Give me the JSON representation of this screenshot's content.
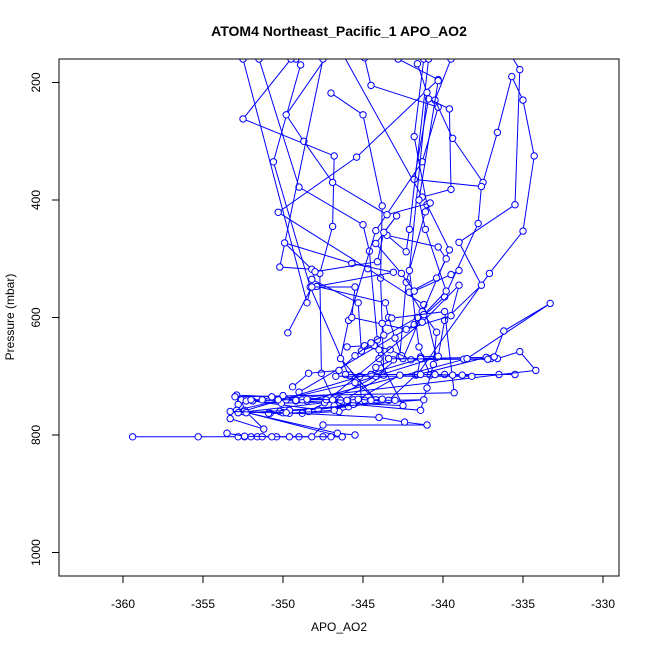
{
  "chart_data": {
    "type": "line",
    "title": "ATOM4 Northeast_Pacific_1 APO_AO2",
    "xlabel": "APO_AO2",
    "ylabel": "Pressure (mbar)",
    "xlim": [
      -364,
      -329
    ],
    "ylim": [
      1040,
      160
    ],
    "y_reversed": true,
    "x_ticks": [
      -360,
      -355,
      -350,
      -345,
      -340,
      -335,
      -330
    ],
    "x_tick_labels": [
      "-360",
      "-355",
      "-350",
      "-345",
      "-340",
      "-335",
      "-330"
    ],
    "y_ticks": [
      200,
      400,
      600,
      800,
      1000
    ],
    "y_tick_labels": [
      "200",
      "400",
      "600",
      "800",
      "1000"
    ],
    "markers": "open-circle",
    "grid": false,
    "colors": {
      "series": "#0000ff",
      "axis": "#000000"
    },
    "series": [
      {
        "points": [
          [
            -349.2,
            160
          ],
          [
            -348.9,
            170
          ],
          [
            -350.6,
            335
          ],
          [
            -348.3,
            548
          ],
          [
            -345.9,
            698
          ],
          [
            -344.2,
            740
          ],
          [
            -346.5,
            760
          ],
          [
            -348.8,
            763
          ],
          [
            -350.8,
            763
          ],
          [
            -352.5,
            760
          ],
          [
            -346.3,
            803
          ],
          [
            -347.5,
            803
          ]
        ]
      },
      {
        "points": [
          [
            -349.5,
            160
          ],
          [
            -352.5,
            262
          ],
          [
            -346.8,
            325
          ],
          [
            -346.9,
            445
          ],
          [
            -347.7,
            525
          ],
          [
            -347.6,
            695
          ],
          [
            -346.8,
            742
          ],
          [
            -345.9,
            752
          ],
          [
            -350.2,
            760
          ],
          [
            -350.0,
            762
          ],
          [
            -349.7,
            762
          ]
        ]
      },
      {
        "points": [
          [
            -351.5,
            160
          ],
          [
            -349.0,
            378
          ],
          [
            -345.0,
            442
          ],
          [
            -344.6,
            487
          ],
          [
            -344.0,
            670
          ],
          [
            -342.5,
            750
          ],
          [
            -349.2,
            742
          ],
          [
            -352.6,
            740
          ],
          [
            -352.4,
            758
          ],
          [
            -351.2,
            790
          ],
          [
            -353.3,
            772
          ]
        ]
      },
      {
        "points": [
          [
            -347.0,
            218
          ],
          [
            -345.0,
            255
          ],
          [
            -343.8,
            410
          ],
          [
            -343.9,
            533
          ],
          [
            -343.7,
            698
          ],
          [
            -346.3,
            743
          ],
          [
            -350.1,
            746
          ],
          [
            -351.9,
            742
          ],
          [
            -347.8,
            757
          ],
          [
            -344.1,
            741
          ],
          [
            -346.5,
            739
          ]
        ]
      },
      {
        "points": [
          [
            -344.9,
            158
          ],
          [
            -344.5,
            205
          ],
          [
            -340.3,
            242
          ],
          [
            -341.3,
            335
          ],
          [
            -344.2,
            452
          ],
          [
            -345.9,
            605
          ],
          [
            -346.4,
            670
          ],
          [
            -344.2,
            740
          ],
          [
            -344.6,
            742
          ],
          [
            -352.9,
            732
          ],
          [
            -352.8,
            748
          ]
        ]
      },
      {
        "points": [
          [
            -342.8,
            160
          ],
          [
            -340.3,
            195
          ],
          [
            -345.4,
            327
          ],
          [
            -350.3,
            421
          ],
          [
            -344.7,
            517
          ],
          [
            -341.2,
            578
          ],
          [
            -340.4,
            668
          ],
          [
            -345.5,
            711
          ],
          [
            -352.9,
            758
          ],
          [
            -346.6,
            797
          ],
          [
            -345.5,
            800
          ]
        ]
      },
      {
        "points": [
          [
            -341.2,
            160
          ],
          [
            -341.8,
            292
          ],
          [
            -341.0,
            408
          ],
          [
            -339.6,
            485
          ],
          [
            -342.5,
            670
          ],
          [
            -337.3,
            668
          ],
          [
            -341.7,
            698
          ],
          [
            -343.4,
            741
          ],
          [
            -345.1,
            742
          ],
          [
            -345.2,
            700
          ],
          [
            -345.8,
            698
          ]
        ]
      },
      {
        "points": [
          [
            -347.2,
            153
          ],
          [
            -349.8,
            255
          ],
          [
            -348.7,
            300
          ],
          [
            -346.9,
            370
          ],
          [
            -343.5,
            425
          ],
          [
            -340.8,
            405
          ],
          [
            -341.1,
            420
          ],
          [
            -342.3,
            540
          ],
          [
            -342.7,
            666
          ],
          [
            -344.2,
            700
          ],
          [
            -348.4,
            760
          ]
        ]
      },
      {
        "points": [
          [
            -339.5,
            160
          ],
          [
            -340.5,
            230
          ],
          [
            -339.4,
            295
          ],
          [
            -337.5,
            370
          ],
          [
            -336.6,
            285
          ],
          [
            -335.7,
            190
          ],
          [
            -335.0,
            230
          ],
          [
            -334.3,
            325
          ],
          [
            -335.0,
            453
          ],
          [
            -337.1,
            525
          ],
          [
            -341.6,
            697
          ]
        ]
      },
      {
        "points": [
          [
            -336.3,
            130
          ],
          [
            -335.2,
            178
          ],
          [
            -335.5,
            408
          ],
          [
            -339.0,
            472
          ],
          [
            -337.6,
            545
          ],
          [
            -339.9,
            605
          ],
          [
            -340.3,
            666
          ],
          [
            -341.4,
            667
          ],
          [
            -341.6,
            697
          ],
          [
            -344.5,
            697
          ],
          [
            -346.1,
            697
          ]
        ]
      },
      {
        "points": [
          [
            -346.5,
            140
          ],
          [
            -341.3,
            395
          ],
          [
            -339.5,
            382
          ],
          [
            -339.6,
            245
          ],
          [
            -340.9,
            228
          ],
          [
            -341.8,
            365
          ],
          [
            -337.6,
            377
          ],
          [
            -337.8,
            440
          ],
          [
            -339.9,
            565
          ],
          [
            -341.8,
            612
          ],
          [
            -349.0,
            727
          ]
        ]
      },
      {
        "points": [
          [
            -340.9,
            160
          ],
          [
            -342.1,
            450
          ],
          [
            -342.3,
            488
          ],
          [
            -343.5,
            460
          ],
          [
            -340.3,
            480
          ],
          [
            -339.8,
            500
          ],
          [
            -340.4,
            533
          ],
          [
            -342.1,
            557
          ],
          [
            -341.3,
            590
          ],
          [
            -341.6,
            600
          ],
          [
            -344.1,
            638
          ]
        ]
      },
      {
        "points": [
          [
            -341.6,
            168
          ],
          [
            -341.0,
            217
          ],
          [
            -342.1,
            520
          ],
          [
            -341.5,
            650
          ],
          [
            -340.8,
            698
          ],
          [
            -336.5,
            697
          ],
          [
            -335.5,
            697
          ],
          [
            -339.9,
            697
          ],
          [
            -344.5,
            697
          ],
          [
            -344.2,
            685
          ],
          [
            -343.1,
            672
          ]
        ]
      },
      {
        "points": [
          [
            -340.3,
            197
          ],
          [
            -341.5,
            400
          ],
          [
            -341.1,
            450
          ],
          [
            -339.8,
            555
          ],
          [
            -341.2,
            595
          ],
          [
            -340.4,
            625
          ],
          [
            -340.6,
            680
          ],
          [
            -341.0,
            720
          ],
          [
            -341.4,
            758
          ],
          [
            -345.6,
            748
          ],
          [
            -346.8,
            750
          ]
        ]
      },
      {
        "points": [
          [
            -347.5,
            160
          ],
          [
            -350.2,
            514
          ],
          [
            -348.2,
            518
          ],
          [
            -349.9,
            473
          ],
          [
            -345.7,
            508
          ],
          [
            -343.1,
            523
          ],
          [
            -347.9,
            547
          ],
          [
            -343.6,
            575
          ],
          [
            -343.4,
            600
          ],
          [
            -343.0,
            635
          ],
          [
            -342.6,
            665
          ]
        ]
      },
      {
        "points": [
          [
            -352.5,
            160
          ],
          [
            -348.5,
            575
          ],
          [
            -348.0,
            522
          ],
          [
            -344.1,
            505
          ],
          [
            -343.7,
            455
          ],
          [
            -342.9,
            427
          ],
          [
            -344.2,
            474
          ],
          [
            -342.6,
            525
          ],
          [
            -341.8,
            555
          ],
          [
            -339.5,
            527
          ],
          [
            -339.0,
            520
          ]
        ]
      },
      {
        "points": [
          [
            -348.2,
            535
          ],
          [
            -345.3,
            575
          ],
          [
            -345.1,
            657
          ],
          [
            -344.3,
            648
          ],
          [
            -343.3,
            655
          ],
          [
            -342.0,
            672
          ],
          [
            -337.0,
            670
          ],
          [
            -336.6,
            670
          ],
          [
            -335.2,
            658
          ],
          [
            -334.2,
            690
          ],
          [
            -349.8,
            740
          ]
        ]
      },
      {
        "points": [
          [
            -349.7,
            626
          ],
          [
            -348.2,
            548
          ],
          [
            -345.5,
            548
          ],
          [
            -345.7,
            600
          ],
          [
            -342.3,
            620
          ],
          [
            -339.5,
            597
          ],
          [
            -339.0,
            545
          ],
          [
            -341.3,
            608
          ],
          [
            -347.4,
            745
          ],
          [
            -352.8,
            762
          ],
          [
            -341.4,
            670
          ]
        ]
      },
      {
        "points": [
          [
            -346.0,
            650
          ],
          [
            -344.9,
            648
          ],
          [
            -344.0,
            655
          ],
          [
            -343.4,
            670
          ],
          [
            -338.7,
            671
          ],
          [
            -337.2,
            671
          ],
          [
            -336.8,
            667
          ],
          [
            -336.2,
            623
          ],
          [
            -333.3,
            576
          ],
          [
            -338.5,
            670
          ],
          [
            -348.5,
            742
          ]
        ]
      },
      {
        "points": [
          [
            -349.4,
            718
          ],
          [
            -348.4,
            695
          ],
          [
            -346.5,
            690
          ],
          [
            -345.5,
            665
          ],
          [
            -344.5,
            643
          ],
          [
            -343.7,
            630
          ],
          [
            -343.8,
            610
          ],
          [
            -343.2,
            601
          ],
          [
            -339.9,
            590
          ],
          [
            -339.3,
            728
          ],
          [
            -353.0,
            735
          ]
        ]
      },
      {
        "points": [
          [
            -350.9,
            763
          ],
          [
            -349.6,
            763
          ],
          [
            -346.8,
            758
          ],
          [
            -345.4,
            741
          ],
          [
            -342.7,
            698
          ],
          [
            -341.4,
            697
          ],
          [
            -340.5,
            697
          ],
          [
            -339.4,
            698
          ],
          [
            -338.8,
            698
          ],
          [
            -338.2,
            700
          ],
          [
            -346.7,
            700
          ]
        ]
      },
      {
        "points": [
          [
            -352.3,
            742
          ],
          [
            -350.3,
            740
          ],
          [
            -348.8,
            740
          ],
          [
            -347.3,
            740
          ],
          [
            -346.4,
            741
          ],
          [
            -345.6,
            740
          ],
          [
            -344.9,
            741
          ],
          [
            -343.0,
            741
          ],
          [
            -341.2,
            740
          ],
          [
            -349.6,
            758
          ],
          [
            -352.3,
            762
          ]
        ]
      },
      {
        "points": [
          [
            -359.4,
            803
          ],
          [
            -355.3,
            803
          ],
          [
            -352.8,
            803
          ],
          [
            -352.4,
            803
          ],
          [
            -352.0,
            803
          ],
          [
            -351.6,
            803
          ],
          [
            -351.3,
            803
          ],
          [
            -350.4,
            803
          ],
          [
            -349.0,
            803
          ],
          [
            -347.0,
            803
          ],
          [
            -346.3,
            803
          ]
        ]
      },
      {
        "points": [
          [
            -353.5,
            797
          ],
          [
            -352.4,
            802
          ],
          [
            -350.7,
            803
          ],
          [
            -349.6,
            803
          ],
          [
            -348.2,
            803
          ],
          [
            -347.5,
            783
          ],
          [
            -341.0,
            783
          ],
          [
            -342.4,
            778
          ],
          [
            -344.0,
            770
          ],
          [
            -349.8,
            762
          ],
          [
            -353.3,
            760
          ]
        ]
      },
      {
        "points": [
          [
            -352.0,
            740
          ],
          [
            -351.3,
            740
          ],
          [
            -350.7,
            735
          ],
          [
            -350.0,
            733
          ],
          [
            -349.2,
            741
          ],
          [
            -348.5,
            739
          ],
          [
            -346.9,
            740
          ],
          [
            -346.0,
            741
          ],
          [
            -345.3,
            739
          ],
          [
            -344.5,
            741
          ],
          [
            -343.8,
            739
          ]
        ]
      }
    ]
  }
}
